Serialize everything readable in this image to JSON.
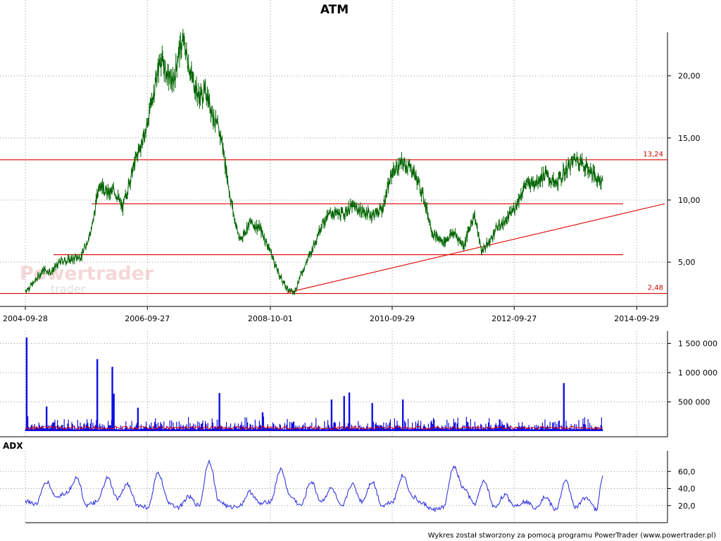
{
  "title": "ATM",
  "footer": "Wykres został stworzony za pomocą programu PowerTrader (www.powertrader.pl)",
  "watermark": {
    "main": "Powertrader",
    "sub": "trader"
  },
  "colors": {
    "price": "#006400",
    "levels": "#e00000",
    "volume": "#1010e0",
    "volume_avg": "#e00000",
    "adx": "#3535e0",
    "grid": "#999999"
  },
  "chart_data": [
    {
      "type": "line",
      "title": "ATM",
      "x_ticks": [
        "2004-09-28",
        "2006-09-27",
        "2008-10-01",
        "2010-09-29",
        "2012-09-27",
        "2014-09-29"
      ],
      "y_ticks": [
        "5,00",
        "10,00",
        "15,00",
        "20,00"
      ],
      "ylim": [
        2.0,
        23.5
      ],
      "xlim": [
        "2004-09-28",
        "2015-04-01"
      ],
      "grid": true,
      "y_axis_side": "right",
      "series": [
        {
          "x": [
            "2004-09-28",
            "2004-11-15",
            "2005-01-15",
            "2005-03-01",
            "2005-05-01",
            "2005-07-01",
            "2005-09-01",
            "2005-11-01",
            "2005-12-15",
            "2006-02-01",
            "2006-03-15",
            "2006-05-01",
            "2006-06-15",
            "2006-08-01",
            "2006-09-15",
            "2006-11-01",
            "2006-12-15",
            "2007-01-15",
            "2007-03-01",
            "2007-04-01",
            "2007-05-01",
            "2007-06-15",
            "2007-08-01",
            "2007-09-15",
            "2007-11-01",
            "2007-12-15",
            "2008-02-01",
            "2008-03-01",
            "2008-04-01",
            "2008-06-01",
            "2008-08-01",
            "2008-10-01",
            "2008-11-15",
            "2009-01-01",
            "2009-02-20",
            "2009-04-01",
            "2009-06-01",
            "2009-08-01",
            "2009-10-01",
            "2009-12-01",
            "2010-02-01",
            "2010-04-01",
            "2010-06-01",
            "2010-08-01",
            "2010-10-01",
            "2010-12-01",
            "2011-02-01",
            "2011-04-01",
            "2011-06-01",
            "2011-08-01",
            "2011-10-01",
            "2011-12-01",
            "2012-02-01",
            "2012-03-15",
            "2012-05-01",
            "2012-06-15",
            "2012-08-01",
            "2012-10-01",
            "2012-12-01",
            "2013-02-01",
            "2013-04-01",
            "2013-06-01",
            "2013-08-01",
            "2013-10-01",
            "2013-12-01",
            "2014-02-01",
            "2014-03-10"
          ],
          "y": [
            2.7,
            3.3,
            4.4,
            4.2,
            5.1,
            5.2,
            5.5,
            7.8,
            11.5,
            10.5,
            10.8,
            9.3,
            11.6,
            13.8,
            15.4,
            18.5,
            21.5,
            20.2,
            19.4,
            21.8,
            22.8,
            20.1,
            18.3,
            18.7,
            16.5,
            14.9,
            10.5,
            8.5,
            6.7,
            8.2,
            7.7,
            5.9,
            4.2,
            3.0,
            2.5,
            4.0,
            5.8,
            8.0,
            9.0,
            8.8,
            9.5,
            9.1,
            8.8,
            9.3,
            12.3,
            13.0,
            12.4,
            10.4,
            7.2,
            6.6,
            7.4,
            6.3,
            8.9,
            5.9,
            6.6,
            7.8,
            8.2,
            9.4,
            11.2,
            11.5,
            12.1,
            11.2,
            12.4,
            13.4,
            12.7,
            11.8,
            11.5
          ]
        }
      ],
      "levels": [
        {
          "value": 13.24,
          "label": "13,24"
        },
        {
          "value": 9.7,
          "label": ""
        },
        {
          "value": 5.6,
          "label": ""
        },
        {
          "value": 2.48,
          "label": "2,48"
        }
      ],
      "trendline": {
        "x": [
          "2009-01-10",
          "2015-03-15"
        ],
        "y": [
          2.55,
          9.7
        ]
      }
    },
    {
      "type": "bar",
      "title": "",
      "y_ticks": [
        "500 000",
        "1 000 000",
        "1 500 000"
      ],
      "ylim": [
        0,
        1650000
      ],
      "baseline": 110000,
      "spikes": [
        {
          "x": "2004-10-05",
          "value": 1600000
        },
        {
          "x": "2005-02-01",
          "value": 420000
        },
        {
          "x": "2005-12-01",
          "value": 1230000
        },
        {
          "x": "2006-03-01",
          "value": 1100000
        },
        {
          "x": "2006-03-10",
          "value": 640000
        },
        {
          "x": "2006-08-01",
          "value": 400000
        },
        {
          "x": "2007-12-01",
          "value": 650000
        },
        {
          "x": "2008-08-15",
          "value": 320000
        },
        {
          "x": "2009-10-01",
          "value": 540000
        },
        {
          "x": "2009-12-15",
          "value": 600000
        },
        {
          "x": "2010-01-15",
          "value": 660000
        },
        {
          "x": "2010-06-01",
          "value": 480000
        },
        {
          "x": "2010-12-01",
          "value": 540000
        },
        {
          "x": "2013-07-20",
          "value": 820000
        }
      ],
      "avg_level": 60000
    },
    {
      "type": "line",
      "title": "ADX",
      "y_ticks": [
        "20,0",
        "40,0",
        "60,0"
      ],
      "ylim": [
        0,
        80
      ],
      "series": [
        {
          "name": "ADX",
          "x": [
            "2004-09-28",
            "2004-12-01",
            "2005-02-01",
            "2005-04-01",
            "2005-06-01",
            "2005-08-01",
            "2005-10-01",
            "2005-12-01",
            "2006-02-01",
            "2006-04-01",
            "2006-06-01",
            "2006-08-01",
            "2006-10-01",
            "2006-12-01",
            "2007-02-01",
            "2007-04-01",
            "2007-06-01",
            "2007-08-01",
            "2007-10-01",
            "2007-12-01",
            "2008-02-01",
            "2008-04-01",
            "2008-06-01",
            "2008-08-01",
            "2008-10-01",
            "2008-12-01",
            "2009-02-01",
            "2009-04-01",
            "2009-06-01",
            "2009-08-01",
            "2009-10-01",
            "2009-12-01",
            "2010-02-01",
            "2010-04-01",
            "2010-06-01",
            "2010-08-01",
            "2010-10-01",
            "2010-12-01",
            "2011-02-01",
            "2011-04-01",
            "2011-06-01",
            "2011-08-01",
            "2011-10-01",
            "2011-12-01",
            "2012-02-01",
            "2012-04-01",
            "2012-06-01",
            "2012-08-01",
            "2012-10-01",
            "2012-12-01",
            "2013-02-01",
            "2013-04-01",
            "2013-06-01",
            "2013-08-01",
            "2013-10-01",
            "2013-12-01",
            "2014-02-01",
            "2014-03-10"
          ],
          "y": [
            25,
            22,
            48,
            30,
            35,
            52,
            20,
            24,
            52,
            28,
            45,
            20,
            18,
            58,
            24,
            18,
            30,
            20,
            72,
            25,
            18,
            20,
            36,
            22,
            25,
            62,
            30,
            20,
            48,
            25,
            40,
            18,
            45,
            25,
            48,
            20,
            25,
            55,
            30,
            22,
            15,
            18,
            65,
            40,
            22,
            48,
            18,
            32,
            20,
            25,
            18,
            30,
            15,
            48,
            18,
            30,
            15,
            55
          ]
        }
      ]
    }
  ]
}
